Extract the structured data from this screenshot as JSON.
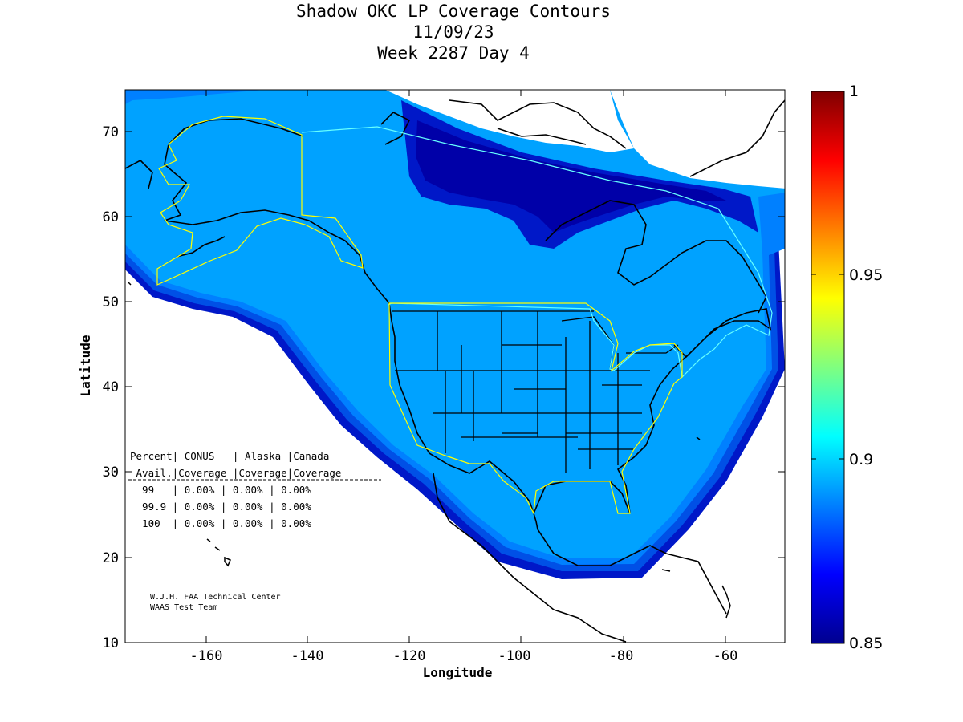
{
  "title": {
    "line1": "Shadow OKC LP Coverage Contours",
    "line2": "11/09/23",
    "line3": "Week 2287 Day 4"
  },
  "axes": {
    "xlabel": "Longitude",
    "ylabel": "Latitude",
    "x_ticks": [
      "-160",
      "-140",
      "-120",
      "-100",
      "-80",
      "-60"
    ],
    "y_ticks": [
      "10",
      "20",
      "30",
      "40",
      "50",
      "60",
      "70"
    ],
    "xlim": [
      -175,
      -50
    ],
    "ylim": [
      10,
      75
    ]
  },
  "colorbar": {
    "ticks": [
      "0.85",
      "0.9",
      "0.95",
      "1"
    ],
    "range": [
      0.85,
      1
    ],
    "colormap": "jet"
  },
  "coverage_table": {
    "header1": "Percent| CONUS   | Alaska |Canada",
    "header2": " Avail.|Coverage |Coverage|Coverage",
    "rows": [
      "  99   | 0.00% | 0.00% | 0.00%",
      "  99.9 | 0.00% | 0.00% | 0.00%",
      "  100  | 0.00% | 0.00% | 0.00%"
    ]
  },
  "credits": {
    "line1": "W.J.H. FAA Technical Center",
    "line2": "WAAS Test Team"
  },
  "colors": {
    "background_outside": "#ffffff",
    "contour_main": "#00a2ff",
    "contour_ring1": "#0080ff",
    "contour_ring2": "#0050e6",
    "contour_ring3": "#0018c8",
    "contour_low": "#0000a8",
    "service_boundary": "#ffff00"
  }
}
